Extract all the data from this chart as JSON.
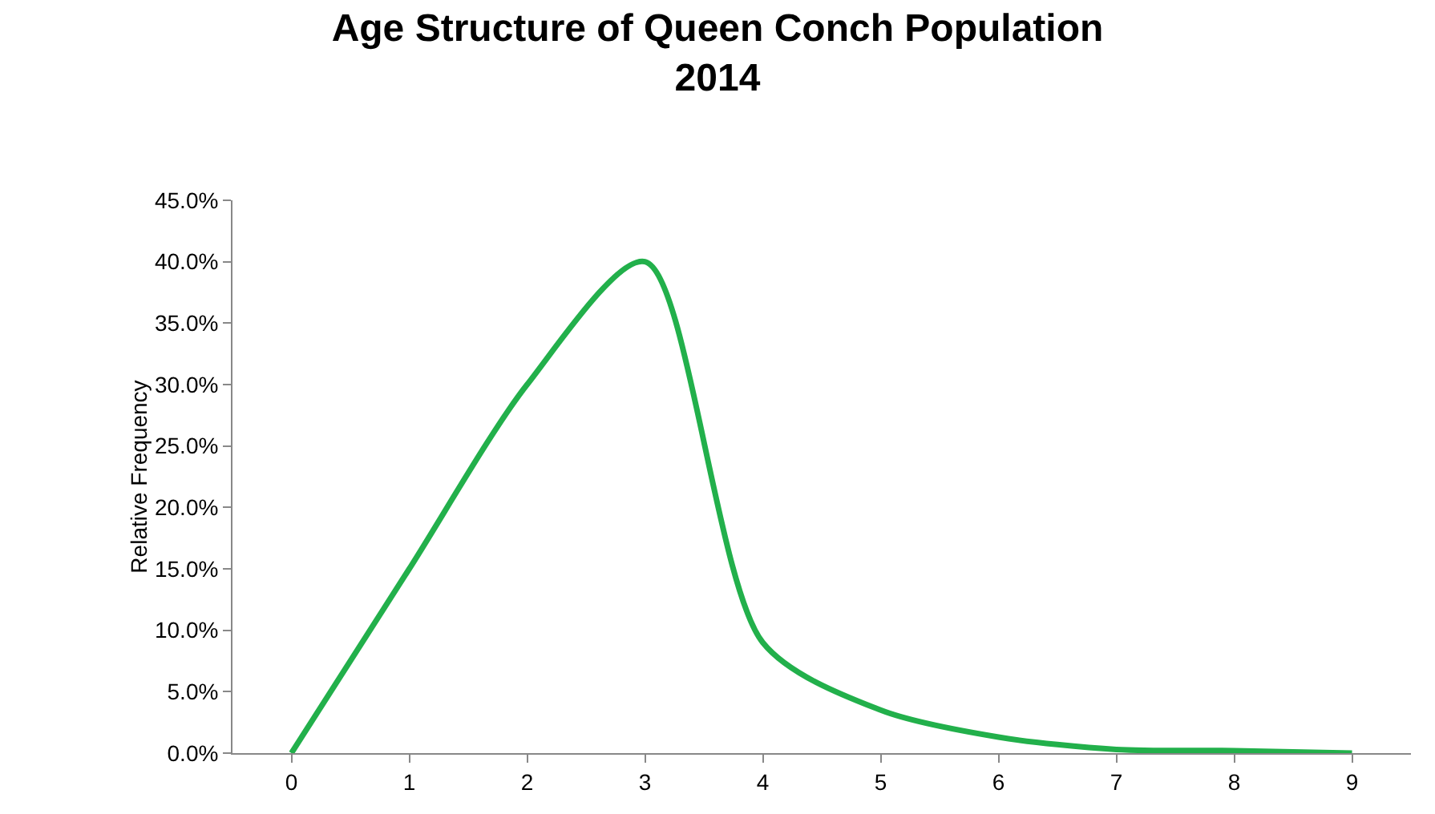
{
  "chart_data": {
    "type": "line",
    "title": "Age Structure of Queen Conch Population\n2014",
    "ylabel": "Relative Frequency",
    "x": [
      0,
      1,
      2,
      3,
      4,
      5,
      6,
      7,
      8,
      9
    ],
    "series": [
      {
        "color": "#22b04b",
        "values": [
          0,
          15,
          30,
          40,
          9,
          3.5,
          1.3,
          0.3,
          0.2,
          0
        ]
      }
    ],
    "xlim": [
      -0.5,
      9.5
    ],
    "xticks": [
      0,
      1,
      2,
      3,
      4,
      5,
      6,
      7,
      8,
      9
    ],
    "ylim": [
      0,
      45
    ],
    "yticks": [
      {
        "value": 0,
        "label": "0.0%"
      },
      {
        "value": 5,
        "label": "5.0%"
      },
      {
        "value": 10,
        "label": "10.0%"
      },
      {
        "value": 15,
        "label": "15.0%"
      },
      {
        "value": 20,
        "label": "20.0%"
      },
      {
        "value": 25,
        "label": "25.0%"
      },
      {
        "value": 30,
        "label": "30.0%"
      },
      {
        "value": 35,
        "label": "35.0%"
      },
      {
        "value": 40,
        "label": "40.0%"
      },
      {
        "value": 45,
        "label": "45.0%"
      }
    ],
    "grid": false,
    "marker": "none",
    "line_style": "solid"
  }
}
